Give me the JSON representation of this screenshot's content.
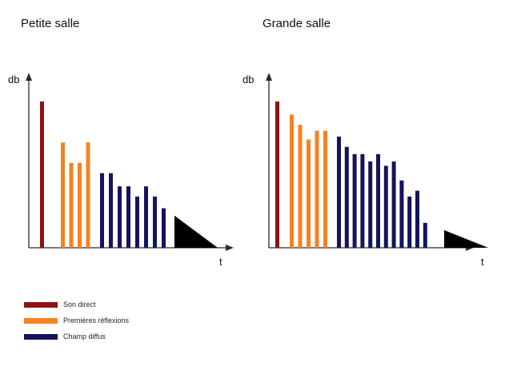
{
  "titles": {
    "left": "Petite salle",
    "right": "Grande salle"
  },
  "axes": {
    "y": "db",
    "x": "t"
  },
  "colors": {
    "direct": "#8b1414",
    "reflexions": "#f58220",
    "diffus": "#14145e",
    "tail": "#000000",
    "axis": "#2a2a2a"
  },
  "legend": [
    {
      "label": "Son direct",
      "color_key": "direct"
    },
    {
      "label": "Premières réflexions",
      "color_key": "reflexions"
    },
    {
      "label": "Champ diffus",
      "color_key": "diffus"
    }
  ],
  "chart_data": [
    {
      "type": "bar",
      "title": "Petite salle",
      "ylabel": "db",
      "xlabel": "t",
      "ylim": [
        0,
        100
      ],
      "series": [
        {
          "name": "Son direct",
          "color_key": "direct",
          "values": [
            100
          ]
        },
        {
          "name": "Premières réflexions",
          "color_key": "reflexions",
          "values": [
            72,
            58,
            58,
            72
          ]
        },
        {
          "name": "Champ diffus",
          "color_key": "diffus",
          "values": [
            51,
            51,
            42,
            42,
            35,
            42,
            35,
            27
          ]
        }
      ],
      "tail_start_value": 22
    },
    {
      "type": "bar",
      "title": "Grande salle",
      "ylabel": "db",
      "xlabel": "t",
      "ylim": [
        0,
        100
      ],
      "series": [
        {
          "name": "Son direct",
          "color_key": "direct",
          "values": [
            100
          ]
        },
        {
          "name": "Premières réflexions",
          "color_key": "reflexions",
          "values": [
            91,
            84,
            74,
            80,
            80
          ]
        },
        {
          "name": "Champ diffus",
          "color_key": "diffus",
          "values": [
            76,
            69,
            64,
            64,
            59,
            64,
            56,
            59,
            46,
            35,
            39,
            17
          ]
        }
      ],
      "tail_start_value": 12
    }
  ]
}
